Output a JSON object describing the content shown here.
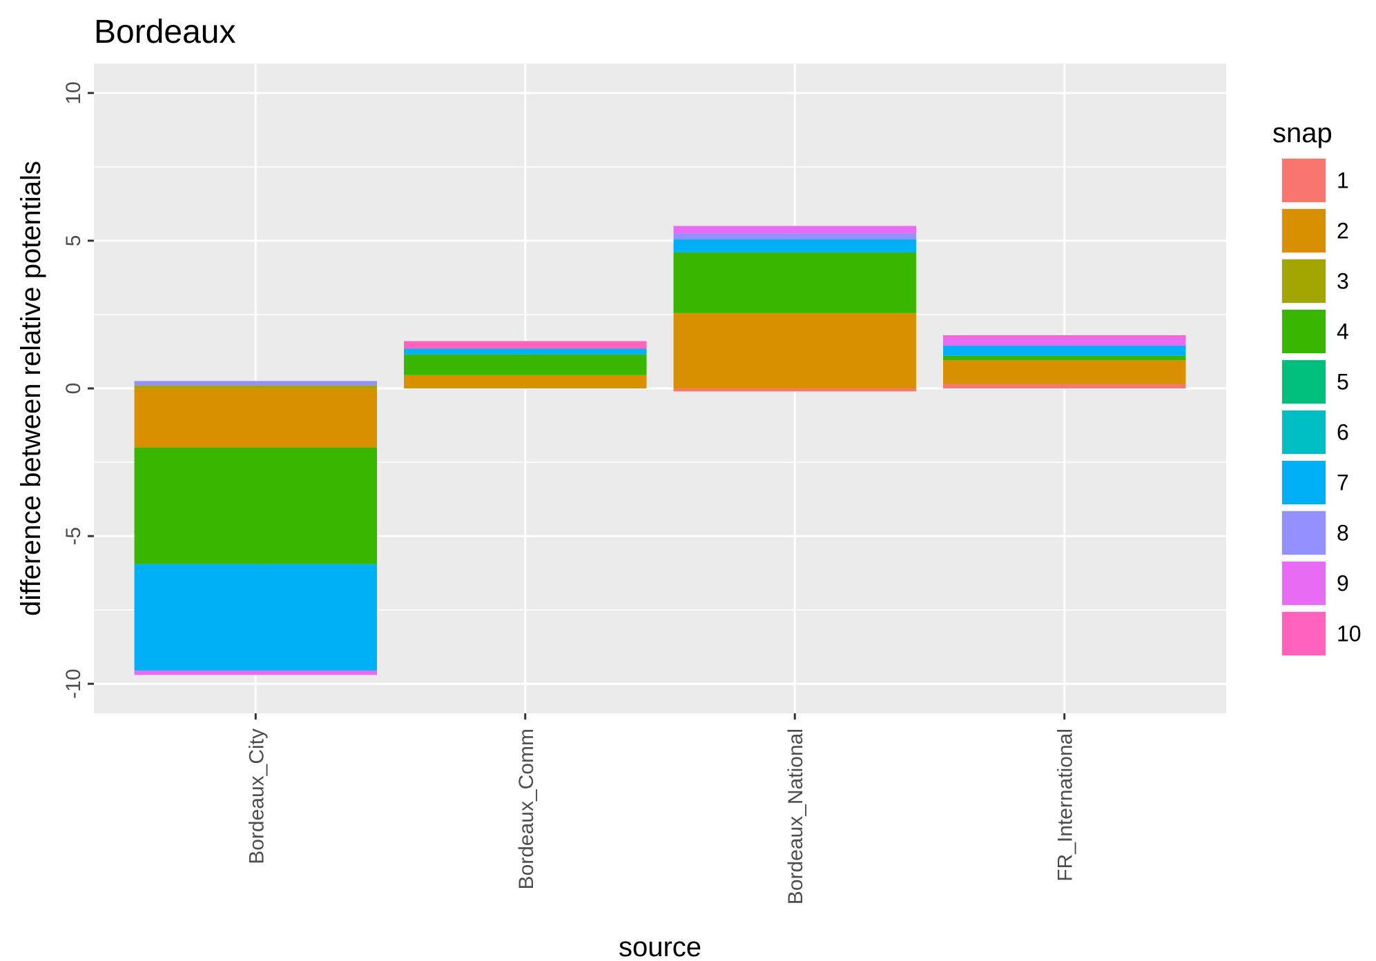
{
  "chart_data": {
    "type": "bar",
    "stacked": true,
    "title": "Bordeaux",
    "xlabel": "source",
    "ylabel": "difference between relative potentials",
    "ylim": [
      -11,
      11
    ],
    "yticks": [
      -10,
      -5,
      0,
      5,
      10
    ],
    "ytick_labels": [
      "-10",
      "-5",
      "0",
      "5",
      "10"
    ],
    "categories": [
      "Bordeaux_City",
      "Bordeaux_Comm",
      "Bordeaux_National",
      "FR_International"
    ],
    "legend": {
      "title": "snap",
      "position": "right"
    },
    "grid": true,
    "panel_background": "#ebebeb",
    "series": [
      {
        "name": "1",
        "color": "#F8766D",
        "values": [
          0.0,
          0.0,
          -0.1,
          0.15
        ]
      },
      {
        "name": "2",
        "color": "#D89000",
        "values": [
          -2.0,
          0.45,
          2.55,
          0.8
        ]
      },
      {
        "name": "3",
        "color": "#A3A500",
        "values": [
          0.1,
          0.0,
          0.0,
          0.0
        ]
      },
      {
        "name": "4",
        "color": "#39B600",
        "values": [
          -3.95,
          0.7,
          2.05,
          0.15
        ]
      },
      {
        "name": "5",
        "color": "#00BF7D",
        "values": [
          0.0,
          0.0,
          0.0,
          0.0
        ]
      },
      {
        "name": "6",
        "color": "#00BFC4",
        "values": [
          0.0,
          0.0,
          0.0,
          0.0
        ]
      },
      {
        "name": "7",
        "color": "#00B0F6",
        "values": [
          -3.6,
          0.2,
          0.45,
          0.35
        ]
      },
      {
        "name": "8",
        "color": "#9590FF",
        "values": [
          0.15,
          0.0,
          0.2,
          0.0
        ]
      },
      {
        "name": "9",
        "color": "#E76BF3",
        "values": [
          -0.15,
          0.0,
          0.25,
          0.3
        ]
      },
      {
        "name": "10",
        "color": "#FF62BC",
        "values": [
          0.0,
          0.25,
          0.0,
          0.05
        ]
      }
    ]
  }
}
